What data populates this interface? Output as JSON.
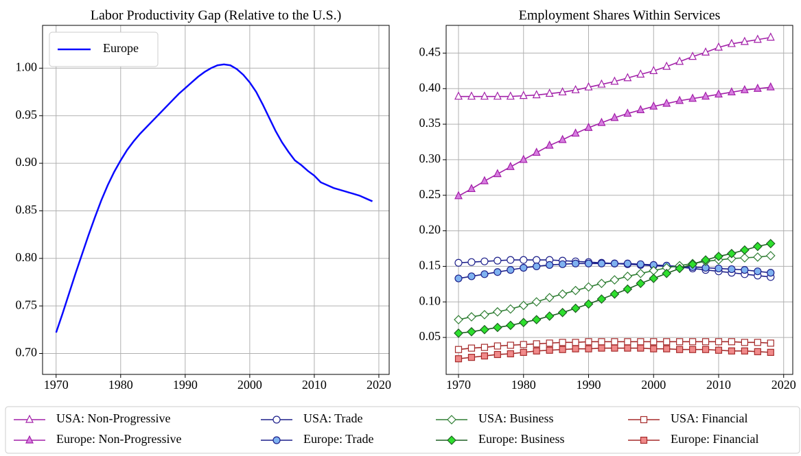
{
  "chart_data": [
    {
      "type": "line",
      "title": "Labor Productivity Gap (Relative to the U.S.)",
      "x": [
        1970,
        1971,
        1972,
        1973,
        1974,
        1975,
        1976,
        1977,
        1978,
        1979,
        1980,
        1981,
        1982,
        1983,
        1984,
        1985,
        1986,
        1987,
        1988,
        1989,
        1990,
        1991,
        1992,
        1993,
        1994,
        1995,
        1996,
        1997,
        1998,
        1999,
        2000,
        2001,
        2002,
        2003,
        2004,
        2005,
        2006,
        2007,
        2008,
        2009,
        2010,
        2011,
        2012,
        2013,
        2014,
        2015,
        2016,
        2017,
        2018,
        2019
      ],
      "series": [
        {
          "name": "Europe",
          "color": "#0a0aff",
          "values": [
            0.722,
            0.742,
            0.763,
            0.784,
            0.804,
            0.824,
            0.843,
            0.861,
            0.877,
            0.891,
            0.903,
            0.914,
            0.923,
            0.931,
            0.938,
            0.945,
            0.952,
            0.959,
            0.966,
            0.973,
            0.979,
            0.985,
            0.991,
            0.996,
            1.0,
            1.003,
            1.004,
            1.003,
            0.999,
            0.993,
            0.985,
            0.975,
            0.962,
            0.948,
            0.934,
            0.922,
            0.912,
            0.903,
            0.898,
            0.892,
            0.887,
            0.88,
            0.877,
            0.874,
            0.872,
            0.87,
            0.868,
            0.866,
            0.863,
            0.86
          ]
        }
      ],
      "xlim": [
        1967.9,
        2021.6
      ],
      "xticks": [
        1970,
        1980,
        1990,
        2000,
        2010,
        2020
      ],
      "ylim": [
        0.678,
        1.045
      ],
      "yticks": [
        {
          "value": 0.7,
          "label": "0.70"
        },
        0.75,
        {
          "value": 0.8,
          "label": "0.80"
        },
        0.85,
        {
          "value": 0.9,
          "label": "0.90"
        },
        0.95,
        {
          "value": 1,
          "label": "1.00"
        }
      ],
      "grid": true,
      "legend": "upper left"
    },
    {
      "type": "line",
      "title": "Employment Shares Within Services",
      "x": [
        1970,
        1972,
        1974,
        1976,
        1978,
        1980,
        1982,
        1984,
        1986,
        1988,
        1990,
        1992,
        1994,
        1996,
        1998,
        2000,
        2002,
        2004,
        2006,
        2008,
        2010,
        2012,
        2014,
        2016,
        2018
      ],
      "series": [
        {
          "name": "USA: Non-Progressive",
          "color": "#a21fa8",
          "marker": "triangle",
          "marker_fill": "none",
          "values": [
            0.389,
            0.389,
            0.389,
            0.389,
            0.389,
            0.39,
            0.391,
            0.393,
            0.395,
            0.398,
            0.402,
            0.406,
            0.41,
            0.415,
            0.42,
            0.425,
            0.431,
            0.438,
            0.445,
            0.451,
            0.458,
            0.463,
            0.466,
            0.469,
            0.472
          ]
        },
        {
          "name": "Europe: Non-Progressive",
          "color": "#a21fa8",
          "marker": "triangle",
          "marker_fill": "#d77ee0",
          "values": [
            0.249,
            0.259,
            0.27,
            0.28,
            0.29,
            0.3,
            0.31,
            0.32,
            0.328,
            0.337,
            0.345,
            0.352,
            0.359,
            0.365,
            0.37,
            0.375,
            0.379,
            0.383,
            0.386,
            0.389,
            0.392,
            0.395,
            0.398,
            0.4,
            0.402
          ]
        },
        {
          "name": "USA: Trade",
          "color": "#1c1f8a",
          "marker": "circle",
          "marker_fill": "none",
          "values": [
            0.155,
            0.156,
            0.157,
            0.158,
            0.159,
            0.159,
            0.159,
            0.159,
            0.158,
            0.157,
            0.156,
            0.155,
            0.154,
            0.153,
            0.152,
            0.151,
            0.15,
            0.149,
            0.147,
            0.145,
            0.143,
            0.141,
            0.139,
            0.137,
            0.135
          ]
        },
        {
          "name": "Europe: Trade",
          "color": "#1c1f8a",
          "marker": "circle",
          "marker_fill": "#7fb2f0",
          "values": [
            0.133,
            0.136,
            0.139,
            0.142,
            0.145,
            0.148,
            0.15,
            0.152,
            0.153,
            0.154,
            0.154,
            0.154,
            0.154,
            0.154,
            0.153,
            0.152,
            0.151,
            0.15,
            0.149,
            0.148,
            0.147,
            0.146,
            0.145,
            0.143,
            0.141
          ]
        },
        {
          "name": "USA: Business",
          "color": "#2e7d32",
          "marker": "diamond",
          "marker_fill": "none",
          "values": [
            0.075,
            0.079,
            0.082,
            0.086,
            0.09,
            0.095,
            0.1,
            0.106,
            0.111,
            0.116,
            0.121,
            0.126,
            0.131,
            0.136,
            0.14,
            0.144,
            0.148,
            0.151,
            0.154,
            0.157,
            0.159,
            0.161,
            0.162,
            0.163,
            0.165
          ]
        },
        {
          "name": "Europe: Business",
          "color": "#1b5e20",
          "marker": "diamond",
          "marker_fill": "#2ee02e",
          "values": [
            0.056,
            0.058,
            0.061,
            0.064,
            0.067,
            0.071,
            0.075,
            0.08,
            0.085,
            0.091,
            0.097,
            0.104,
            0.111,
            0.118,
            0.126,
            0.133,
            0.14,
            0.147,
            0.153,
            0.159,
            0.164,
            0.168,
            0.173,
            0.178,
            0.182
          ]
        },
        {
          "name": "USA: Financial",
          "color": "#a52a2a",
          "marker": "square",
          "marker_fill": "none",
          "values": [
            0.033,
            0.035,
            0.036,
            0.038,
            0.039,
            0.04,
            0.041,
            0.042,
            0.043,
            0.043,
            0.044,
            0.044,
            0.044,
            0.044,
            0.044,
            0.044,
            0.044,
            0.044,
            0.044,
            0.044,
            0.044,
            0.044,
            0.043,
            0.043,
            0.042
          ]
        },
        {
          "name": "Europe: Financial",
          "color": "#a52a2a",
          "marker": "square",
          "marker_fill": "#f08a8a",
          "values": [
            0.02,
            0.022,
            0.024,
            0.026,
            0.027,
            0.029,
            0.031,
            0.032,
            0.033,
            0.034,
            0.034,
            0.035,
            0.035,
            0.035,
            0.035,
            0.034,
            0.034,
            0.033,
            0.033,
            0.033,
            0.032,
            0.031,
            0.031,
            0.03,
            0.029
          ]
        }
      ],
      "xlim": [
        1968.1,
        2021.4
      ],
      "xticks": [
        1970,
        1980,
        1990,
        2000,
        2010,
        2020
      ],
      "ylim": [
        -0.002,
        0.489
      ],
      "yticks": [
        0.05,
        {
          "value": 0.1,
          "label": "0.10"
        },
        0.15,
        {
          "value": 0.2,
          "label": "0.20"
        },
        0.25,
        {
          "value": 0.3,
          "label": "0.30"
        },
        0.35,
        {
          "value": 0.4,
          "label": "0.40"
        },
        0.45
      ],
      "grid": true,
      "legend": "below"
    }
  ]
}
